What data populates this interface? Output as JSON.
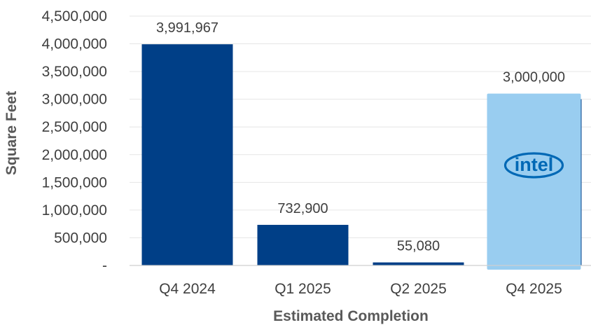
{
  "chart_data": {
    "type": "bar",
    "categories": [
      "Q4 2024",
      "Q1 2025",
      "Q2 2025",
      "Q4 2025"
    ],
    "values": [
      3991967,
      732900,
      55080,
      3000000
    ],
    "data_labels": [
      "3,991,967",
      "732,900",
      "55,080",
      "3,000,000"
    ],
    "colors": [
      "#003f87",
      "#003f87",
      "#003f87",
      "#99cdf0"
    ],
    "highlight_index": 3,
    "highlight_logo": "intel",
    "xlabel": "Estimated Completion",
    "ylabel": "Square Feet",
    "ylim": [
      0,
      4500000
    ],
    "yticks": [
      0,
      500000,
      1000000,
      1500000,
      2000000,
      2500000,
      3000000,
      3500000,
      4000000,
      4500000
    ],
    "ytick_labels": [
      "-",
      "500,000",
      "1,000,000",
      "1,500,000",
      "2,000,000",
      "2,500,000",
      "3,000,000",
      "3,500,000",
      "4,000,000",
      "4,500,000"
    ],
    "grid": true,
    "legend": "none"
  },
  "colors": {
    "logo_blue": "#0068b5"
  }
}
